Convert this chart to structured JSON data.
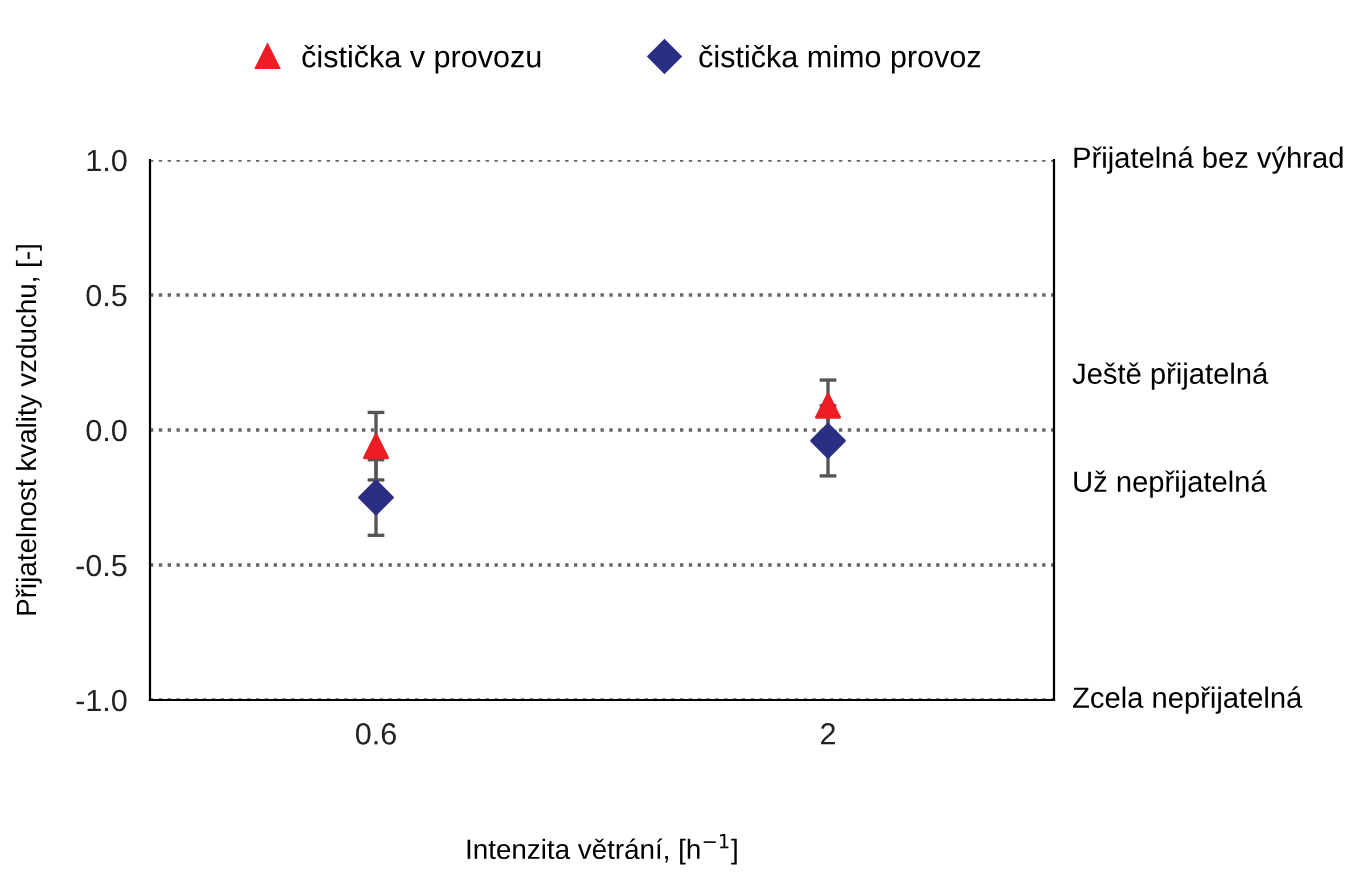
{
  "chart_data": {
    "type": "scatter",
    "xlabel": "Intenzita větrání, [h$^{−1}$]",
    "ylabel": "Přijatelnost kvality vzduchu, [-]",
    "categories": [
      "0.6",
      "2"
    ],
    "series": [
      {
        "name": "čistička v provozu",
        "color": "#ee1c25",
        "marker": "triangle",
        "values": [
          -0.06,
          0.09
        ],
        "errors": [
          0.125,
          0.095
        ]
      },
      {
        "name": "čistička mimo provoz",
        "color": "#2b2f84",
        "marker": "diamond",
        "values": [
          -0.25,
          -0.04
        ],
        "errors": [
          0.14,
          0.13
        ]
      }
    ],
    "ylim": [
      -1.0,
      1.0
    ],
    "yticks": [
      {
        "value": -1.0,
        "label": "-1.0"
      },
      {
        "value": -0.5,
        "label": "-0.5"
      },
      {
        "value": 0.0,
        "label": "0.0"
      },
      {
        "value": 0.5,
        "label": "0.5"
      },
      {
        "value": 1.0,
        "label": "1.0"
      }
    ],
    "annotations": [
      "Přijatelná bez výhrad",
      "Ještě přijatelná",
      "Už nepřijatelná",
      "Zcela nepřijatelná"
    ],
    "grid": "y",
    "legend": "top",
    "line_style": "dotted"
  }
}
